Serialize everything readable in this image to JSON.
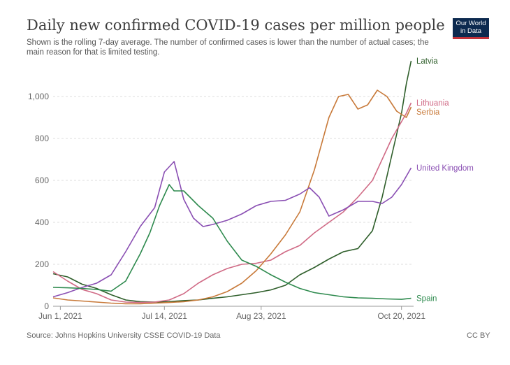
{
  "header": {
    "title": "Daily new confirmed COVID-19 cases per million people",
    "subtitle": "Shown is the rolling 7-day average. The number of confirmed cases is lower than the number of actual cases; the main reason for that is limited testing.",
    "logo_line1": "Our World",
    "logo_line2": "in Data"
  },
  "footer": {
    "source": "Source: Johns Hopkins University CSSE COVID-19 Data",
    "license": "CC BY"
  },
  "chart_data": {
    "type": "line",
    "title": "Daily new confirmed COVID-19 cases per million people",
    "xlabel": "",
    "ylabel": "",
    "x_range_days": [
      0,
      149
    ],
    "ylim": [
      0,
      1180
    ],
    "y_ticks": [
      0,
      200,
      400,
      600,
      800,
      1000
    ],
    "y_tick_labels": [
      "0",
      "200",
      "400",
      "600",
      "800",
      "1,000"
    ],
    "x_ticks": [
      {
        "day": 3,
        "label": "Jun 1, 2021"
      },
      {
        "day": 46,
        "label": "Jul 14, 2021"
      },
      {
        "day": 86,
        "label": "Aug 23, 2021"
      },
      {
        "day": 144,
        "label": "Oct 20, 2021"
      }
    ],
    "series": [
      {
        "name": "Latvia",
        "color": "#2e5e2a",
        "points": [
          [
            0,
            155
          ],
          [
            6,
            140
          ],
          [
            12,
            105
          ],
          [
            18,
            85
          ],
          [
            24,
            55
          ],
          [
            30,
            30
          ],
          [
            36,
            22
          ],
          [
            42,
            20
          ],
          [
            48,
            22
          ],
          [
            54,
            27
          ],
          [
            60,
            30
          ],
          [
            66,
            38
          ],
          [
            72,
            45
          ],
          [
            78,
            55
          ],
          [
            84,
            65
          ],
          [
            90,
            78
          ],
          [
            96,
            100
          ],
          [
            102,
            150
          ],
          [
            108,
            185
          ],
          [
            114,
            225
          ],
          [
            120,
            260
          ],
          [
            126,
            275
          ],
          [
            132,
            360
          ],
          [
            136,
            520
          ],
          [
            140,
            720
          ],
          [
            144,
            920
          ],
          [
            146,
            1060
          ],
          [
            148,
            1170
          ]
        ]
      },
      {
        "name": "Lithuania",
        "color": "#d06b86",
        "points": [
          [
            0,
            165
          ],
          [
            6,
            120
          ],
          [
            12,
            80
          ],
          [
            18,
            60
          ],
          [
            24,
            30
          ],
          [
            30,
            20
          ],
          [
            36,
            18
          ],
          [
            42,
            20
          ],
          [
            48,
            30
          ],
          [
            54,
            60
          ],
          [
            60,
            110
          ],
          [
            66,
            150
          ],
          [
            72,
            180
          ],
          [
            78,
            200
          ],
          [
            84,
            205
          ],
          [
            90,
            220
          ],
          [
            96,
            260
          ],
          [
            102,
            290
          ],
          [
            108,
            350
          ],
          [
            114,
            400
          ],
          [
            120,
            450
          ],
          [
            126,
            520
          ],
          [
            132,
            600
          ],
          [
            136,
            700
          ],
          [
            140,
            800
          ],
          [
            144,
            880
          ],
          [
            146,
            920
          ],
          [
            148,
            970
          ]
        ]
      },
      {
        "name": "Serbia",
        "color": "#c87a3a",
        "points": [
          [
            0,
            40
          ],
          [
            6,
            30
          ],
          [
            12,
            25
          ],
          [
            18,
            20
          ],
          [
            24,
            15
          ],
          [
            30,
            12
          ],
          [
            36,
            12
          ],
          [
            42,
            15
          ],
          [
            48,
            18
          ],
          [
            54,
            22
          ],
          [
            60,
            30
          ],
          [
            66,
            45
          ],
          [
            72,
            70
          ],
          [
            78,
            110
          ],
          [
            84,
            170
          ],
          [
            90,
            250
          ],
          [
            96,
            340
          ],
          [
            102,
            450
          ],
          [
            108,
            650
          ],
          [
            114,
            900
          ],
          [
            118,
            1000
          ],
          [
            122,
            1010
          ],
          [
            126,
            940
          ],
          [
            130,
            960
          ],
          [
            134,
            1030
          ],
          [
            138,
            1000
          ],
          [
            142,
            930
          ],
          [
            146,
            900
          ],
          [
            148,
            950
          ]
        ]
      },
      {
        "name": "United Kingdom",
        "color": "#8a4fb3",
        "points": [
          [
            0,
            45
          ],
          [
            6,
            65
          ],
          [
            12,
            90
          ],
          [
            18,
            110
          ],
          [
            24,
            150
          ],
          [
            30,
            260
          ],
          [
            36,
            380
          ],
          [
            42,
            470
          ],
          [
            46,
            640
          ],
          [
            50,
            690
          ],
          [
            54,
            510
          ],
          [
            58,
            420
          ],
          [
            62,
            380
          ],
          [
            66,
            390
          ],
          [
            72,
            410
          ],
          [
            78,
            440
          ],
          [
            84,
            480
          ],
          [
            90,
            500
          ],
          [
            96,
            505
          ],
          [
            102,
            535
          ],
          [
            106,
            565
          ],
          [
            110,
            520
          ],
          [
            114,
            430
          ],
          [
            120,
            460
          ],
          [
            126,
            500
          ],
          [
            132,
            500
          ],
          [
            136,
            490
          ],
          [
            140,
            520
          ],
          [
            144,
            580
          ],
          [
            148,
            660
          ]
        ]
      },
      {
        "name": "Spain",
        "color": "#2e8a4e",
        "points": [
          [
            0,
            90
          ],
          [
            6,
            88
          ],
          [
            12,
            85
          ],
          [
            18,
            80
          ],
          [
            24,
            72
          ],
          [
            30,
            120
          ],
          [
            36,
            250
          ],
          [
            40,
            350
          ],
          [
            44,
            480
          ],
          [
            46,
            530
          ],
          [
            48,
            580
          ],
          [
            50,
            550
          ],
          [
            54,
            550
          ],
          [
            60,
            480
          ],
          [
            66,
            420
          ],
          [
            72,
            310
          ],
          [
            78,
            220
          ],
          [
            84,
            190
          ],
          [
            90,
            150
          ],
          [
            96,
            115
          ],
          [
            102,
            85
          ],
          [
            108,
            65
          ],
          [
            114,
            55
          ],
          [
            120,
            45
          ],
          [
            126,
            40
          ],
          [
            132,
            38
          ],
          [
            138,
            35
          ],
          [
            144,
            33
          ],
          [
            148,
            38
          ]
        ]
      }
    ],
    "legend": "right-of-lines"
  }
}
